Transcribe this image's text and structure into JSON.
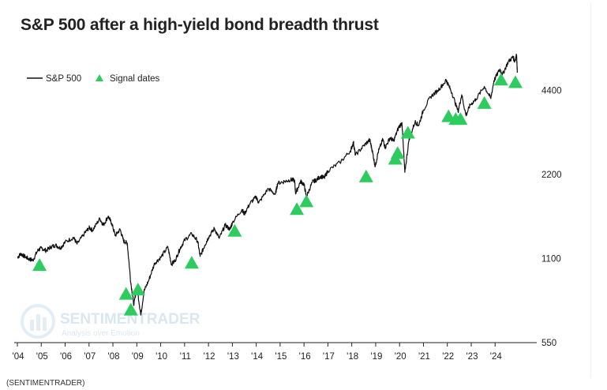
{
  "chart_data": {
    "type": "line",
    "title": "S&P 500 after a high-yield bond breadth thrust",
    "source": "(SENTIMENTRADER)",
    "watermark": {
      "name": "SENTIMENTRADER",
      "tagline": "Analysis over Emotion"
    },
    "y_scale": "log",
    "ylim": [
      550,
      6200
    ],
    "yticks": [
      550,
      1100,
      2200,
      4400
    ],
    "xlim": [
      2004.0,
      2024.95
    ],
    "xticks": [
      {
        "year": 2004,
        "label": "'04"
      },
      {
        "year": 2005,
        "label": "'05"
      },
      {
        "year": 2006,
        "label": "'06"
      },
      {
        "year": 2007,
        "label": "'07"
      },
      {
        "year": 2008,
        "label": "'08"
      },
      {
        "year": 2009,
        "label": "'09"
      },
      {
        "year": 2010,
        "label": "'10"
      },
      {
        "year": 2011,
        "label": "'11"
      },
      {
        "year": 2012,
        "label": "'12"
      },
      {
        "year": 2013,
        "label": "'13"
      },
      {
        "year": 2014,
        "label": "'14"
      },
      {
        "year": 2015,
        "label": "'15"
      },
      {
        "year": 2016,
        "label": "'16"
      },
      {
        "year": 2017,
        "label": "'17"
      },
      {
        "year": 2018,
        "label": "'18"
      },
      {
        "year": 2019,
        "label": "'19"
      },
      {
        "year": 2020,
        "label": "'20"
      },
      {
        "year": 2021,
        "label": "'21"
      },
      {
        "year": 2022,
        "label": "'22"
      },
      {
        "year": 2023,
        "label": "'23"
      },
      {
        "year": 2024,
        "label": "'24"
      }
    ],
    "legend": {
      "placement": "top-left",
      "entries": [
        "S&P 500",
        "Signal dates"
      ]
    },
    "series": [
      {
        "name": "S&P 500",
        "color": "#111111",
        "points": [
          [
            2004.0,
            1110
          ],
          [
            2004.15,
            1145
          ],
          [
            2004.3,
            1120
          ],
          [
            2004.5,
            1095
          ],
          [
            2004.65,
            1085
          ],
          [
            2004.85,
            1175
          ],
          [
            2005.0,
            1200
          ],
          [
            2005.2,
            1175
          ],
          [
            2005.4,
            1210
          ],
          [
            2005.6,
            1230
          ],
          [
            2005.8,
            1200
          ],
          [
            2006.0,
            1260
          ],
          [
            2006.35,
            1310
          ],
          [
            2006.5,
            1240
          ],
          [
            2006.8,
            1350
          ],
          [
            2007.0,
            1420
          ],
          [
            2007.15,
            1390
          ],
          [
            2007.45,
            1530
          ],
          [
            2007.6,
            1450
          ],
          [
            2007.8,
            1560
          ],
          [
            2007.95,
            1470
          ],
          [
            2008.1,
            1330
          ],
          [
            2008.3,
            1400
          ],
          [
            2008.45,
            1270
          ],
          [
            2008.6,
            1250
          ],
          [
            2008.75,
            900
          ],
          [
            2008.88,
            750
          ],
          [
            2009.0,
            880
          ],
          [
            2009.17,
            690
          ],
          [
            2009.3,
            840
          ],
          [
            2009.5,
            920
          ],
          [
            2009.75,
            1060
          ],
          [
            2010.0,
            1110
          ],
          [
            2010.3,
            1210
          ],
          [
            2010.45,
            1050
          ],
          [
            2010.6,
            1080
          ],
          [
            2010.8,
            1190
          ],
          [
            2011.0,
            1280
          ],
          [
            2011.3,
            1350
          ],
          [
            2011.55,
            1270
          ],
          [
            2011.65,
            1120
          ],
          [
            2011.85,
            1230
          ],
          [
            2012.0,
            1310
          ],
          [
            2012.25,
            1410
          ],
          [
            2012.45,
            1300
          ],
          [
            2012.7,
            1450
          ],
          [
            2012.9,
            1400
          ],
          [
            2013.0,
            1480
          ],
          [
            2013.4,
            1650
          ],
          [
            2013.5,
            1590
          ],
          [
            2013.75,
            1740
          ],
          [
            2014.0,
            1830
          ],
          [
            2014.1,
            1740
          ],
          [
            2014.5,
            1960
          ],
          [
            2014.8,
            1870
          ],
          [
            2014.9,
            2050
          ],
          [
            2015.2,
            2080
          ],
          [
            2015.45,
            2110
          ],
          [
            2015.6,
            2100
          ],
          [
            2015.65,
            1880
          ],
          [
            2015.85,
            2080
          ],
          [
            2016.0,
            2030
          ],
          [
            2016.1,
            1830
          ],
          [
            2016.35,
            2070
          ],
          [
            2016.5,
            2100
          ],
          [
            2016.7,
            2170
          ],
          [
            2016.85,
            2140
          ],
          [
            2017.0,
            2270
          ],
          [
            2017.5,
            2430
          ],
          [
            2017.95,
            2680
          ],
          [
            2018.07,
            2870
          ],
          [
            2018.15,
            2580
          ],
          [
            2018.5,
            2790
          ],
          [
            2018.75,
            2930
          ],
          [
            2018.85,
            2700
          ],
          [
            2018.98,
            2350
          ],
          [
            2019.1,
            2640
          ],
          [
            2019.3,
            2940
          ],
          [
            2019.4,
            2750
          ],
          [
            2019.6,
            2980
          ],
          [
            2019.75,
            2900
          ],
          [
            2019.95,
            3230
          ],
          [
            2020.1,
            3380
          ],
          [
            2020.22,
            2240
          ],
          [
            2020.4,
            2950
          ],
          [
            2020.65,
            3400
          ],
          [
            2020.8,
            3300
          ],
          [
            2021.0,
            3750
          ],
          [
            2021.3,
            4180
          ],
          [
            2021.6,
            4400
          ],
          [
            2021.95,
            4780
          ],
          [
            2022.0,
            4700
          ],
          [
            2022.2,
            4300
          ],
          [
            2022.45,
            3700
          ],
          [
            2022.6,
            4250
          ],
          [
            2022.78,
            3580
          ],
          [
            2022.95,
            3900
          ],
          [
            2023.2,
            4100
          ],
          [
            2023.55,
            4550
          ],
          [
            2023.82,
            4120
          ],
          [
            2023.95,
            4770
          ],
          [
            2024.2,
            5250
          ],
          [
            2024.3,
            5000
          ],
          [
            2024.55,
            5580
          ],
          [
            2024.75,
            5800
          ],
          [
            2024.82,
            5600
          ],
          [
            2024.9,
            5900
          ],
          [
            2024.93,
            5100
          ]
        ]
      },
      {
        "name": "Signal dates",
        "color": "#2ecc5f",
        "points": [
          [
            2004.93,
            1040
          ],
          [
            2008.55,
            820
          ],
          [
            2008.75,
            720
          ],
          [
            2009.05,
            850
          ],
          [
            2011.3,
            1060
          ],
          [
            2013.1,
            1380
          ],
          [
            2015.7,
            1650
          ],
          [
            2016.1,
            1760
          ],
          [
            2018.6,
            2160
          ],
          [
            2019.82,
            2500
          ],
          [
            2019.92,
            2620
          ],
          [
            2020.35,
            3100
          ],
          [
            2022.05,
            3550
          ],
          [
            2022.35,
            3470
          ],
          [
            2022.55,
            3470
          ],
          [
            2023.55,
            3960
          ],
          [
            2024.25,
            4800
          ],
          [
            2024.85,
            4700
          ]
        ]
      }
    ]
  }
}
